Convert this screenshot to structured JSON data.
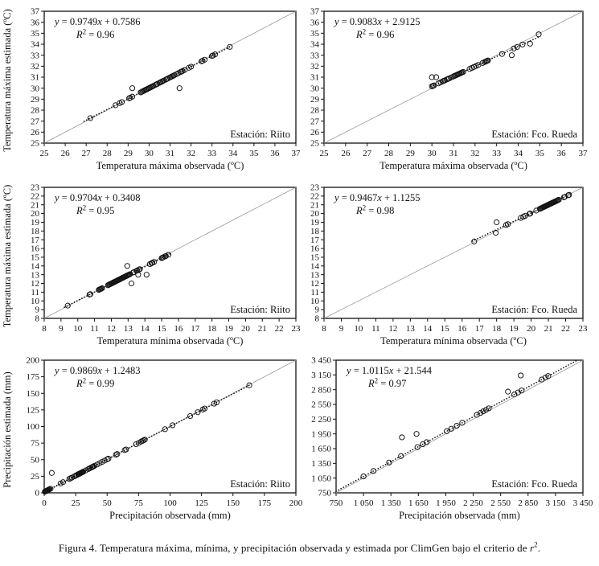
{
  "caption": {
    "before": "Figura 4. Temperatura máxima, mínima, y precipitación observada y estimada por ClimGen bajo el criterio de ",
    "r": "r",
    "sup": "2",
    "after": "."
  },
  "chart_data": [
    {
      "type": "scatter",
      "name": "tmax-riito",
      "station": "Estación: Riito",
      "equation": {
        "display": "y = 0.9749x + 0.7586",
        "slope_text": "0.9749",
        "sign": "+",
        "intercept_text": "0.7586"
      },
      "r2": "0.96",
      "xlabel": "Temperatura máxima observada (ºC)",
      "ylabel": "Temperatura máxima estimada (ºC)",
      "xlim": [
        25,
        37
      ],
      "ylim": [
        25,
        37
      ],
      "xticks": [
        25,
        26,
        27,
        28,
        29,
        30,
        31,
        32,
        33,
        34,
        35,
        36,
        37
      ],
      "yticks": [
        25,
        26,
        27,
        28,
        29,
        30,
        31,
        32,
        33,
        34,
        35,
        36,
        37
      ],
      "grid": false,
      "identity_line": true,
      "fit": {
        "slope": 0.9749,
        "intercept": 0.7586,
        "range": [
          26.9,
          33.9
        ]
      },
      "points_on_fit": [
        27.2,
        28.4,
        28.6,
        28.7,
        29.05,
        29.1,
        29.2,
        29.6,
        29.65,
        29.7,
        29.75,
        29.8,
        29.85,
        29.9,
        29.95,
        30,
        30.05,
        30.1,
        30.15,
        30.2,
        30.3,
        30.35,
        30.4,
        30.5,
        30.55,
        30.6,
        30.65,
        30.7,
        30.8,
        30.85,
        30.9,
        31,
        31.05,
        31.1,
        31.15,
        31.2,
        31.3,
        31.4,
        31.5,
        31.55,
        31.6,
        31.7,
        31.9,
        32,
        32.5,
        32.55,
        32.65,
        33,
        33.05,
        33.15,
        33.85
      ],
      "outliers": [
        [
          29.2,
          30
        ],
        [
          31.45,
          30
        ]
      ]
    },
    {
      "type": "scatter",
      "name": "tmax-fco-rueda",
      "station": "Estación: Fco. Rueda",
      "equation": {
        "display": "y = 0.9083x + 2.9125",
        "slope_text": "0.9083",
        "sign": "+",
        "intercept_text": "2.9125"
      },
      "r2": "0.96",
      "xlabel": "Temperatura máxima observada (ºC)",
      "ylabel": null,
      "xlim": [
        25,
        37
      ],
      "ylim": [
        25,
        37
      ],
      "xticks": [
        25,
        26,
        27,
        28,
        29,
        30,
        31,
        32,
        33,
        34,
        35,
        36,
        37
      ],
      "yticks": [
        25,
        26,
        27,
        28,
        29,
        30,
        31,
        32,
        33,
        34,
        35,
        36,
        37
      ],
      "grid": false,
      "identity_line": true,
      "fit": {
        "slope": 0.9083,
        "intercept": 2.9125,
        "range": [
          29.95,
          35.0
        ]
      },
      "points_on_fit": [
        30,
        30.05,
        30.1,
        30.3,
        30.4,
        30.5,
        30.55,
        30.6,
        30.7,
        30.75,
        30.8,
        30.9,
        31,
        31.05,
        31.1,
        31.15,
        31.2,
        31.25,
        31.3,
        31.35,
        31.4,
        31.45,
        31.75,
        31.85,
        31.95,
        32.05,
        32.15,
        32.35,
        32.45,
        32.5,
        32.55,
        32.6,
        33.25,
        33.8,
        33.95,
        34.2
      ],
      "outliers": [
        [
          30,
          31
        ],
        [
          30.2,
          31
        ],
        [
          33.7,
          33
        ],
        [
          34.55,
          34.05
        ],
        [
          34.95,
          34.9
        ]
      ]
    },
    {
      "type": "scatter",
      "name": "tmin-riito",
      "station": "Estación: Riito",
      "equation": {
        "display": "y = 0.9704x + 0.3408",
        "slope_text": "0.9704",
        "sign": "+",
        "intercept_text": "0.3408"
      },
      "r2": "0.95",
      "xlabel": "Temperatura mínima observada (ºC)",
      "ylabel": "Temperatura máxima estimada (ºC)",
      "xlim": [
        8,
        23
      ],
      "ylim": [
        8,
        23
      ],
      "xticks": [
        8,
        9,
        10,
        11,
        12,
        13,
        14,
        15,
        16,
        17,
        18,
        19,
        20,
        21,
        22,
        23
      ],
      "yticks": [
        8,
        9,
        10,
        11,
        12,
        13,
        14,
        15,
        16,
        17,
        18,
        19,
        20,
        21,
        22,
        23
      ],
      "grid": false,
      "identity_line": true,
      "fit": {
        "slope": 0.9704,
        "intercept": 0.3408,
        "range": [
          9.2,
          15.5
        ]
      },
      "points_on_fit": [
        9.4,
        10.7,
        10.75,
        11.25,
        11.3,
        11.35,
        11.4,
        11.45,
        11.8,
        11.85,
        11.9,
        11.95,
        12,
        12.05,
        12.1,
        12.15,
        12.2,
        12.25,
        12.3,
        12.35,
        12.4,
        12.45,
        12.5,
        12.55,
        12.6,
        12.65,
        12.7,
        12.75,
        12.8,
        12.85,
        12.9,
        12.95,
        13,
        13.05,
        13.1,
        13.3,
        13.35,
        13.5,
        13.55,
        13.65,
        13.7,
        14.3,
        14.4,
        14.45,
        14.55,
        15,
        15.05,
        15.1,
        15.2,
        15.25,
        15.4
      ],
      "outliers": [
        [
          12.95,
          14
        ],
        [
          13.2,
          12
        ],
        [
          13.6,
          13
        ],
        [
          14.1,
          13
        ]
      ]
    },
    {
      "type": "scatter",
      "name": "tmin-fco-rueda",
      "station": "Estación: Fco. Rueda",
      "equation": {
        "display": "y = 0.9467x + 1.1255",
        "slope_text": "0.9467",
        "sign": "+",
        "intercept_text": "1.1255"
      },
      "r2": "0.98",
      "xlabel": "Temperatura mínima observada (ºC)",
      "ylabel": null,
      "xlim": [
        8,
        23
      ],
      "ylim": [
        8,
        23
      ],
      "xticks": [
        8,
        9,
        10,
        11,
        12,
        13,
        14,
        15,
        16,
        17,
        18,
        19,
        20,
        21,
        22,
        23
      ],
      "yticks": [
        8,
        9,
        10,
        11,
        12,
        13,
        14,
        15,
        16,
        17,
        18,
        19,
        20,
        21,
        22,
        23
      ],
      "grid": false,
      "identity_line": true,
      "fit": {
        "slope": 0.9467,
        "intercept": 1.1255,
        "range": [
          16.6,
          22.3
        ]
      },
      "points_on_fit": [
        18.55,
        18.65,
        19.4,
        19.55,
        19.65,
        19.9,
        19.95,
        20.3,
        20.5,
        20.55,
        20.6,
        20.65,
        20.7,
        20.75,
        20.8,
        20.85,
        20.9,
        20.95,
        21,
        21.05,
        21.1,
        21.15,
        21.2,
        21.25,
        21.3,
        21.35,
        21.4,
        21.45,
        21.5,
        21.55,
        21.6,
        21.9,
        21.95,
        22.15,
        22.2
      ],
      "outliers": [
        [
          16.7,
          16.8
        ],
        [
          17.95,
          17.8
        ],
        [
          18,
          19
        ]
      ]
    },
    {
      "type": "scatter",
      "name": "precip-riito",
      "station": "Estación: Riito",
      "equation": {
        "display": "y = 0.9869x + 1.2483",
        "slope_text": "0.9869",
        "sign": "+",
        "intercept_text": "1.2483"
      },
      "r2": "0.99",
      "xlabel": "Precipitación observada (mm)",
      "ylabel": "Precipitación estimada (mm)",
      "xlim": [
        0,
        200
      ],
      "ylim": [
        0,
        200
      ],
      "xticks": [
        0,
        25,
        50,
        75,
        100,
        125,
        150,
        175,
        200
      ],
      "yticks": [
        0,
        25,
        50,
        75,
        100,
        125,
        150,
        175,
        200
      ],
      "grid": false,
      "identity_line": true,
      "fit": {
        "slope": 0.9869,
        "intercept": 1.2483,
        "range": [
          0,
          164
        ]
      },
      "points_on_fit": [
        0.5,
        1,
        1.5,
        2,
        2.5,
        3,
        3.5,
        4,
        5,
        13,
        15,
        20,
        21,
        22,
        24,
        25,
        26,
        27,
        27.5,
        28,
        28.5,
        29,
        29.5,
        30,
        30.5,
        31,
        33,
        35,
        36,
        37,
        38,
        38.5,
        39,
        40,
        42,
        44,
        46,
        48,
        50,
        51,
        57,
        58,
        64,
        65,
        73,
        75,
        77,
        78,
        79,
        80,
        96,
        102,
        116,
        122,
        126,
        127.5,
        135,
        137,
        163
      ],
      "outliers": [
        [
          6,
          30
        ]
      ]
    },
    {
      "type": "scatter",
      "name": "precip-fco-rueda",
      "station": "Estación: Fco. Rueda",
      "equation": {
        "display": "y = 1.0115x + 21.544",
        "slope_text": "1.0115",
        "sign": "+",
        "intercept_text": "21.544"
      },
      "r2": "0.97",
      "xlabel": "Precipitación observada (mm)",
      "ylabel": null,
      "xlim": [
        750,
        3450
      ],
      "ylim": [
        750,
        3450
      ],
      "xticks": [
        750,
        1050,
        1350,
        1650,
        1950,
        2250,
        2550,
        2850,
        3150,
        3450
      ],
      "yticks": [
        750,
        1050,
        1350,
        1650,
        1950,
        2250,
        2550,
        2850,
        3150,
        3450
      ],
      "xtick_labels": [
        "750",
        "1 050",
        "1 350",
        "1 650",
        "1 950",
        "2 250",
        "2 550",
        "2 850",
        "3 150",
        "3 450"
      ],
      "ytick_labels": [
        "750",
        "1 050",
        "1 350",
        "1 650",
        "1 950",
        "2 250",
        "2 550",
        "2 850",
        "3 150",
        "3 450"
      ],
      "grid": false,
      "identity_line": true,
      "fit": {
        "slope": 1.0115,
        "intercept": 21.544,
        "range": [
          750,
          3450
        ]
      },
      "points_on_fit": [
        1050,
        1160,
        1330,
        1460,
        1640,
        1700,
        1740,
        1960,
        2010,
        2070,
        2130,
        2290,
        2330,
        2360,
        2390,
        2420,
        2700,
        2740,
        2780,
        3000,
        3040,
        3070
      ],
      "outliers": [
        [
          1470,
          1880
        ],
        [
          1630,
          1950
        ],
        [
          2630,
          2810
        ],
        [
          2770,
          3140
        ]
      ]
    }
  ]
}
